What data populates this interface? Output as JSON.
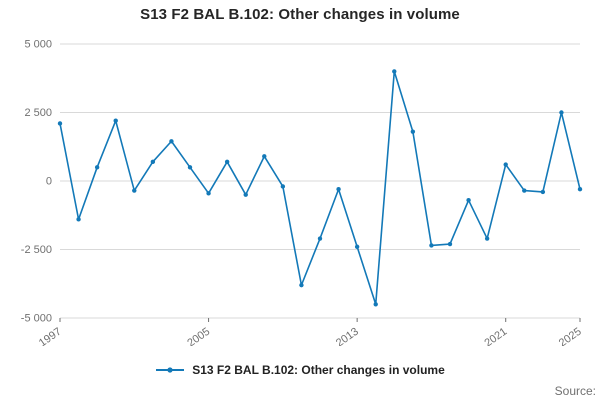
{
  "title": "S13 F2 BAL B.102: Other changes in volume",
  "legend": {
    "label": "S13 F2 BAL B.102: Other changes in volume"
  },
  "source": "Source:",
  "colors": {
    "line": "#1379b8",
    "grid": "#d9d9d9",
    "axis_text": "#707070",
    "title_text": "#262626"
  },
  "chart_data": {
    "type": "line",
    "title": "S13 F2 BAL B.102: Other changes in volume",
    "xlabel": "",
    "ylabel": "",
    "ylim": [
      -5000,
      5000
    ],
    "grid": "horizontal",
    "legend_position": "bottom",
    "x": [
      1997,
      1998,
      1999,
      2000,
      2001,
      2002,
      2003,
      2004,
      2005,
      2006,
      2007,
      2008,
      2009,
      2010,
      2011,
      2012,
      2013,
      2014,
      2015,
      2016,
      2017,
      2018,
      2019,
      2020,
      2021,
      2022,
      2023,
      2024,
      2025
    ],
    "values": [
      2100,
      -1400,
      500,
      2200,
      -350,
      700,
      1450,
      500,
      -450,
      700,
      -500,
      900,
      -200,
      -3800,
      -2100,
      -300,
      -2400,
      -4500,
      4000,
      1800,
      -2350,
      -2300,
      -700,
      -2100,
      600,
      -350,
      -400,
      2500,
      -300
    ],
    "series_name": "S13 F2 BAL B.102: Other changes in volume",
    "yticks": [
      {
        "value": 5000,
        "label": "5 000"
      },
      {
        "value": 2500,
        "label": "2 500"
      },
      {
        "value": 0,
        "label": "0"
      },
      {
        "value": -2500,
        "label": "-2 500"
      },
      {
        "value": -5000,
        "label": "-5 000"
      }
    ],
    "xticks": [
      {
        "value": 1997,
        "label": "1997"
      },
      {
        "value": 2005,
        "label": "2005"
      },
      {
        "value": 2013,
        "label": "2013"
      },
      {
        "value": 2021,
        "label": "2021"
      },
      {
        "value": 2025,
        "label": "2025"
      }
    ]
  }
}
